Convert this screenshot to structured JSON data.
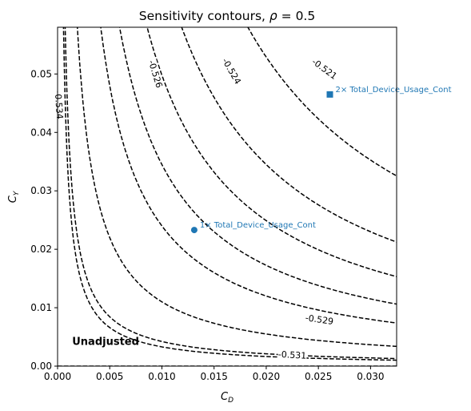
{
  "chart_data": {
    "type": "contour",
    "title": "Sensitivity contours, ρ = 0.5",
    "xlabel": "C",
    "xlabel_sub": "D",
    "ylabel": "C",
    "ylabel_sub": "Y",
    "xlim": [
      0,
      0.0325
    ],
    "ylim": [
      0,
      0.058
    ],
    "xticks": [
      {
        "v": 0,
        "label": "0.000"
      },
      {
        "v": 0.005,
        "label": "0.005"
      },
      {
        "v": 0.01,
        "label": "0.010"
      },
      {
        "v": 0.015,
        "label": "0.015"
      },
      {
        "v": 0.02,
        "label": "0.020"
      },
      {
        "v": 0.025,
        "label": "0.025"
      },
      {
        "v": 0.03,
        "label": "0.030"
      }
    ],
    "yticks": [
      {
        "v": 0,
        "label": "0.00"
      },
      {
        "v": 0.01,
        "label": "0.01"
      },
      {
        "v": 0.02,
        "label": "0.02"
      },
      {
        "v": 0.03,
        "label": "0.03"
      },
      {
        "v": 0.04,
        "label": "0.04"
      },
      {
        "v": 0.05,
        "label": "0.05"
      }
    ],
    "contour_color": "#000000",
    "contours": [
      {
        "level": "",
        "k": 0.0,
        "label_x": null,
        "label_y": null,
        "label_angle": 0
      },
      {
        "level": "-0.531",
        "k": 3.3e-05,
        "label_x": 0.0225,
        "label_y": 0.00195,
        "label_angle": 3
      },
      {
        "level": "-0.529",
        "k": 0.00011,
        "label_x": 0.0251,
        "label_y": 0.008,
        "label_angle": 8
      },
      {
        "level": "",
        "k": 0.000345,
        "label_x": null,
        "label_y": null,
        "label_angle": 0
      },
      {
        "level": "",
        "k": 0.00069,
        "label_x": null,
        "label_y": null,
        "label_angle": 0
      },
      {
        "level": "-0.534",
        "k": 4.22e-05,
        "label_x": 0.00015,
        "label_y": 0.0447,
        "label_angle": 86
      },
      {
        "level": "-0.526",
        "k": 0.00024,
        "label_x": 0.0094,
        "label_y": 0.05,
        "label_angle": 73
      },
      {
        "level": "-0.524",
        "k": 0.000498,
        "label_x": 0.0167,
        "label_y": 0.0505,
        "label_angle": 60
      },
      {
        "level": "-0.521",
        "k": 0.001058,
        "label_x": 0.0256,
        "label_y": 0.0509,
        "label_angle": 36
      }
    ],
    "points": [
      {
        "x": 0.0131,
        "y": 0.0233,
        "marker": "circle",
        "label": "1× Total_Device_Usage_Cont"
      },
      {
        "x": 0.0261,
        "y": 0.0465,
        "marker": "square",
        "label": "2× Total_Device_Usage_Cont"
      }
    ],
    "point_color": "#1f77b4",
    "annotations": [
      {
        "text": "Unadjusted",
        "x": 0.0014,
        "y": 0.0042
      }
    ]
  }
}
